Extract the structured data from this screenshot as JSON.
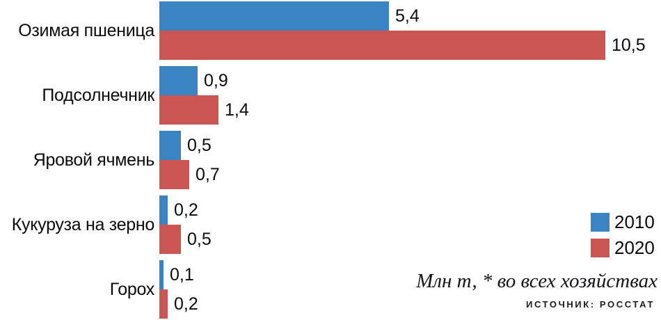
{
  "chart_data": {
    "type": "bar",
    "orientation": "horizontal",
    "categories": [
      "Озимая пшеница",
      "Подсолнечник",
      "Яровой ячмень",
      "Кукуруза на зерно",
      "Горох"
    ],
    "series": [
      {
        "name": "2010",
        "color": "#3A84C4",
        "values": [
          5.4,
          0.9,
          0.5,
          0.2,
          0.1
        ],
        "value_labels": [
          "5,4",
          "0,9",
          "0,5",
          "0,2",
          "0,1"
        ]
      },
      {
        "name": "2020",
        "color": "#CB5552",
        "values": [
          10.5,
          1.4,
          0.7,
          0.5,
          0.2
        ],
        "value_labels": [
          "10,5",
          "1,4",
          "0,7",
          "0,5",
          "0,2"
        ]
      }
    ],
    "xlim": [
      0,
      10.5
    ],
    "grid": false,
    "legend_position": "right",
    "unit_note": "Млн т, * во всех хозяйствах",
    "source": "ИСТОЧНИК: РОССТАТ"
  }
}
